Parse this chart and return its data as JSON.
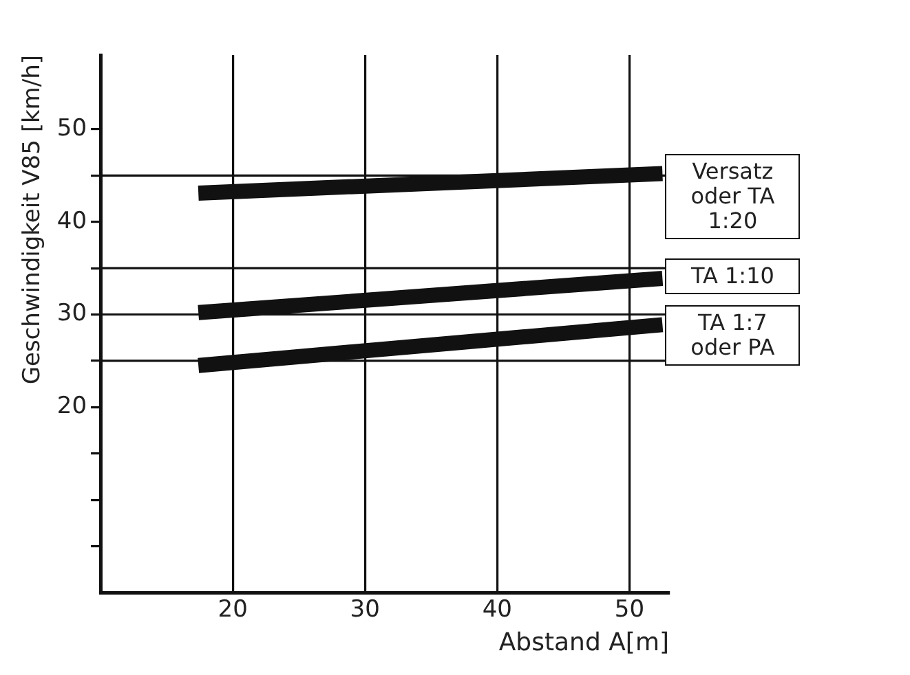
{
  "chart_data": {
    "type": "line",
    "xlabel": "Abstand A[m]",
    "ylabel": "Geschwindigkeit V85 [km/h]",
    "x": [
      17.4,
      52.5
    ],
    "xlim": [
      10,
      53
    ],
    "xticks": [
      20,
      30,
      40,
      50
    ],
    "ylim": [
      0,
      58
    ],
    "yticks": [
      {
        "value": 5,
        "label": null
      },
      {
        "value": 10,
        "label": null
      },
      {
        "value": 15,
        "label": null
      },
      20,
      {
        "value": 25,
        "label": null
      },
      30,
      {
        "value": 35,
        "label": null
      },
      40,
      {
        "value": 45,
        "label": null
      },
      50
    ],
    "grid": "x",
    "legend": false,
    "marker": "none",
    "line_style": "solid",
    "ref_lines": [
      {
        "axis": "y",
        "value": 45
      },
      {
        "axis": "y",
        "value": 35
      },
      {
        "axis": "y",
        "value": 30
      },
      {
        "axis": "y",
        "value": 25
      }
    ],
    "series": [
      {
        "name": "Versatz oder TA 1:20",
        "color": "#111111",
        "values": [
          43.1,
          45.2
        ]
      },
      {
        "name": "TA 1:10",
        "color": "#111111",
        "values": [
          30.2,
          33.9
        ]
      },
      {
        "name": "TA 1:7 oder PA",
        "color": "#111111",
        "values": [
          24.5,
          28.9
        ]
      }
    ]
  }
}
